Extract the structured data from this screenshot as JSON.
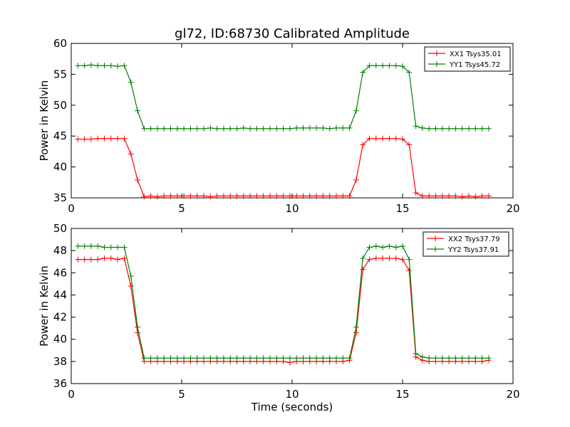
{
  "figure_title": "gl72, ID:68730 Calibrated Amplitude",
  "x_axis_label": "Time (seconds)",
  "colors": {
    "XX": "#ff0000",
    "YY": "#008000"
  },
  "chart_data": [
    {
      "type": "line",
      "title": "gl72, ID:68730 Calibrated Amplitude",
      "xlabel": "",
      "ylabel": "Power in Kelvin",
      "xlim": [
        0,
        20
      ],
      "ylim": [
        35,
        60
      ],
      "xticks": [
        "0",
        "5",
        "10",
        "15",
        "20"
      ],
      "yticks": [
        "35",
        "40",
        "45",
        "50",
        "55",
        "60"
      ],
      "xtick_values": [
        0,
        5,
        10,
        15,
        20
      ],
      "ytick_values": [
        35,
        40,
        45,
        50,
        55,
        60
      ],
      "grid": false,
      "legend_position": "top-right",
      "x": [
        0.3,
        0.6,
        0.9,
        1.2,
        1.5,
        1.8,
        2.1,
        2.4,
        2.7,
        3.0,
        3.3,
        3.6,
        3.9,
        4.2,
        4.5,
        4.8,
        5.1,
        5.4,
        5.7,
        6.0,
        6.3,
        6.6,
        6.9,
        7.2,
        7.5,
        7.8,
        8.1,
        8.4,
        8.7,
        9.0,
        9.3,
        9.6,
        9.9,
        10.2,
        10.5,
        10.8,
        11.1,
        11.4,
        11.7,
        12.0,
        12.3,
        12.6,
        12.9,
        13.2,
        13.5,
        13.8,
        14.1,
        14.4,
        14.7,
        15.0,
        15.3,
        15.6,
        15.9,
        16.2,
        16.5,
        16.8,
        17.1,
        17.4,
        17.7,
        18.0,
        18.3,
        18.6,
        18.9
      ],
      "series": [
        {
          "name": "XX1 Tsys35.01",
          "color": "#ff0000",
          "values": [
            44.5,
            44.5,
            44.5,
            44.6,
            44.6,
            44.6,
            44.6,
            44.6,
            42.1,
            37.9,
            35.2,
            35.3,
            35.2,
            35.3,
            35.3,
            35.3,
            35.3,
            35.3,
            35.3,
            35.3,
            35.2,
            35.3,
            35.3,
            35.3,
            35.3,
            35.3,
            35.3,
            35.3,
            35.3,
            35.3,
            35.3,
            35.3,
            35.3,
            35.3,
            35.3,
            35.3,
            35.3,
            35.3,
            35.3,
            35.3,
            35.3,
            35.3,
            37.9,
            43.6,
            44.6,
            44.6,
            44.6,
            44.6,
            44.6,
            44.5,
            43.6,
            35.8,
            35.3,
            35.3,
            35.3,
            35.3,
            35.3,
            35.3,
            35.2,
            35.3,
            35.2,
            35.3,
            35.3
          ]
        },
        {
          "name": "YY1 Tsys45.72",
          "color": "#008000",
          "values": [
            56.4,
            56.4,
            56.5,
            56.4,
            56.4,
            56.4,
            56.3,
            56.4,
            53.7,
            49.1,
            46.2,
            46.2,
            46.2,
            46.2,
            46.2,
            46.2,
            46.2,
            46.2,
            46.2,
            46.2,
            46.3,
            46.2,
            46.2,
            46.2,
            46.2,
            46.3,
            46.2,
            46.2,
            46.2,
            46.2,
            46.2,
            46.2,
            46.2,
            46.3,
            46.3,
            46.3,
            46.3,
            46.3,
            46.2,
            46.3,
            46.3,
            46.3,
            49.1,
            55.3,
            56.4,
            56.4,
            56.4,
            56.4,
            56.4,
            56.3,
            55.3,
            46.6,
            46.3,
            46.2,
            46.2,
            46.2,
            46.2,
            46.2,
            46.2,
            46.2,
            46.2,
            46.2,
            46.2
          ]
        }
      ]
    },
    {
      "type": "line",
      "title": "",
      "xlabel": "Time (seconds)",
      "ylabel": "Power in Kelvin",
      "xlim": [
        0,
        20
      ],
      "ylim": [
        36,
        50
      ],
      "xticks": [
        "0",
        "5",
        "10",
        "15",
        "20"
      ],
      "yticks": [
        "36",
        "38",
        "40",
        "42",
        "44",
        "46",
        "48",
        "50"
      ],
      "xtick_values": [
        0,
        5,
        10,
        15,
        20
      ],
      "ytick_values": [
        36,
        38,
        40,
        42,
        44,
        46,
        48,
        50
      ],
      "grid": false,
      "legend_position": "top-right",
      "x": [
        0.3,
        0.6,
        0.9,
        1.2,
        1.5,
        1.8,
        2.1,
        2.4,
        2.7,
        3.0,
        3.3,
        3.6,
        3.9,
        4.2,
        4.5,
        4.8,
        5.1,
        5.4,
        5.7,
        6.0,
        6.3,
        6.6,
        6.9,
        7.2,
        7.5,
        7.8,
        8.1,
        8.4,
        8.7,
        9.0,
        9.3,
        9.6,
        9.9,
        10.2,
        10.5,
        10.8,
        11.1,
        11.4,
        11.7,
        12.0,
        12.3,
        12.6,
        12.9,
        13.2,
        13.5,
        13.8,
        14.1,
        14.4,
        14.7,
        15.0,
        15.3,
        15.6,
        15.9,
        16.2,
        16.5,
        16.8,
        17.1,
        17.4,
        17.7,
        18.0,
        18.3,
        18.6,
        18.9
      ],
      "series": [
        {
          "name": "XX2 Tsys37.79",
          "color": "#ff0000",
          "values": [
            47.2,
            47.2,
            47.2,
            47.2,
            47.3,
            47.3,
            47.2,
            47.3,
            44.8,
            40.6,
            38.0,
            38.0,
            38.0,
            38.0,
            38.0,
            38.0,
            38.0,
            38.0,
            38.0,
            38.0,
            38.0,
            38.0,
            38.0,
            38.0,
            38.0,
            38.0,
            38.0,
            38.0,
            38.0,
            38.0,
            38.0,
            38.0,
            37.9,
            38.0,
            38.0,
            38.0,
            38.0,
            38.0,
            38.0,
            38.0,
            38.0,
            38.1,
            40.6,
            46.3,
            47.2,
            47.3,
            47.3,
            47.3,
            47.3,
            47.2,
            46.2,
            38.4,
            38.1,
            38.0,
            38.0,
            38.0,
            38.0,
            38.0,
            38.0,
            38.0,
            38.0,
            38.0,
            38.1
          ]
        },
        {
          "name": "YY2 Tsys37.91",
          "color": "#008000",
          "values": [
            48.4,
            48.4,
            48.4,
            48.4,
            48.3,
            48.3,
            48.3,
            48.3,
            45.7,
            41.1,
            38.3,
            38.3,
            38.3,
            38.3,
            38.3,
            38.3,
            38.3,
            38.3,
            38.3,
            38.3,
            38.3,
            38.3,
            38.3,
            38.3,
            38.3,
            38.3,
            38.3,
            38.3,
            38.3,
            38.3,
            38.3,
            38.3,
            38.3,
            38.3,
            38.3,
            38.3,
            38.3,
            38.3,
            38.3,
            38.3,
            38.3,
            38.3,
            41.1,
            47.3,
            48.3,
            48.4,
            48.3,
            48.4,
            48.3,
            48.4,
            47.2,
            38.7,
            38.4,
            38.3,
            38.3,
            38.3,
            38.3,
            38.3,
            38.3,
            38.3,
            38.3,
            38.3,
            38.3
          ]
        }
      ]
    }
  ]
}
